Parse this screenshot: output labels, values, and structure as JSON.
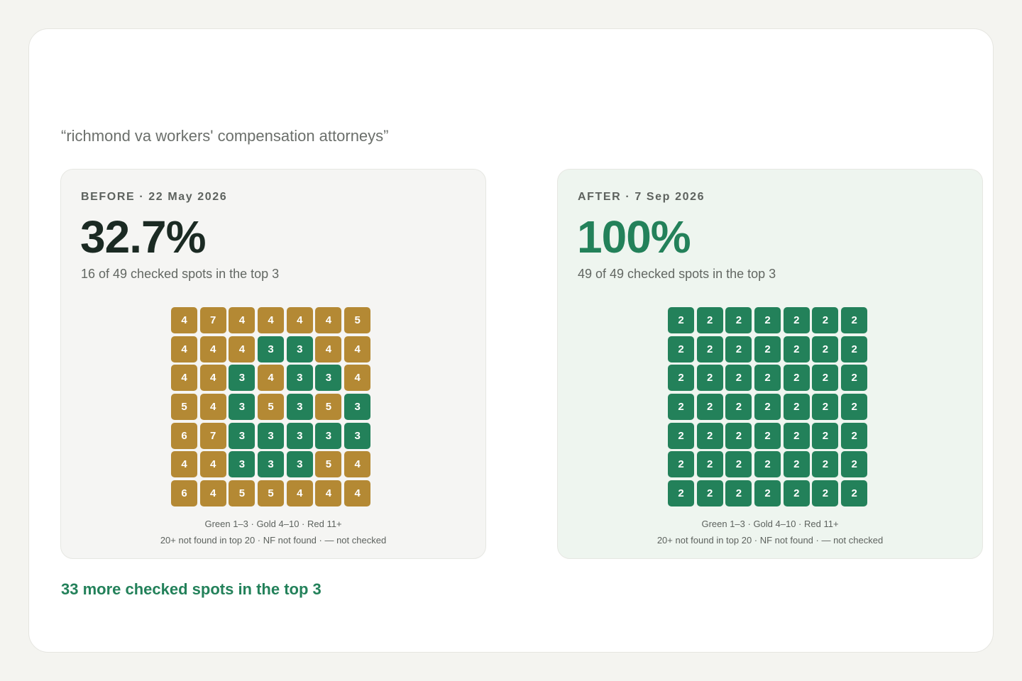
{
  "query": "“richmond va workers' compensation attorneys”",
  "color_scale": [
    {
      "upto": 3,
      "color": "#23815a"
    },
    {
      "upto": 10,
      "color": "#b48934"
    },
    {
      "color": "#c0392b"
    }
  ],
  "panels": [
    {
      "label": "BEFORE · 22 May 2026",
      "stat": "32.7%",
      "subtitle": "16 of 49 checked spots in the top 3",
      "grid": [
        [
          4,
          7,
          4,
          4,
          4,
          4,
          5
        ],
        [
          4,
          4,
          4,
          3,
          3,
          4,
          4
        ],
        [
          4,
          4,
          3,
          4,
          3,
          3,
          4
        ],
        [
          5,
          4,
          3,
          5,
          3,
          5,
          3
        ],
        [
          6,
          7,
          3,
          3,
          3,
          3,
          3
        ],
        [
          4,
          4,
          3,
          3,
          3,
          5,
          4
        ],
        [
          6,
          4,
          5,
          5,
          4,
          4,
          4
        ]
      ],
      "legend": [
        "Green 1–3 · Gold 4–10 · Red 11+",
        "20+ not found in top 20 · NF not found · — not checked"
      ]
    },
    {
      "label": "AFTER · 7 Sep 2026",
      "stat": "100%",
      "subtitle": "49 of 49 checked spots in the top 3",
      "grid": [
        [
          2,
          2,
          2,
          2,
          2,
          2,
          2
        ],
        [
          2,
          2,
          2,
          2,
          2,
          2,
          2
        ],
        [
          2,
          2,
          2,
          2,
          2,
          2,
          2
        ],
        [
          2,
          2,
          2,
          2,
          2,
          2,
          2
        ],
        [
          2,
          2,
          2,
          2,
          2,
          2,
          2
        ],
        [
          2,
          2,
          2,
          2,
          2,
          2,
          2
        ],
        [
          2,
          2,
          2,
          2,
          2,
          2,
          2
        ]
      ],
      "legend": [
        "Green 1–3 · Gold 4–10 · Red 11+",
        "20+ not found in top 20 · NF not found · — not checked"
      ]
    }
  ],
  "footer": "33 more checked spots in the top 3"
}
